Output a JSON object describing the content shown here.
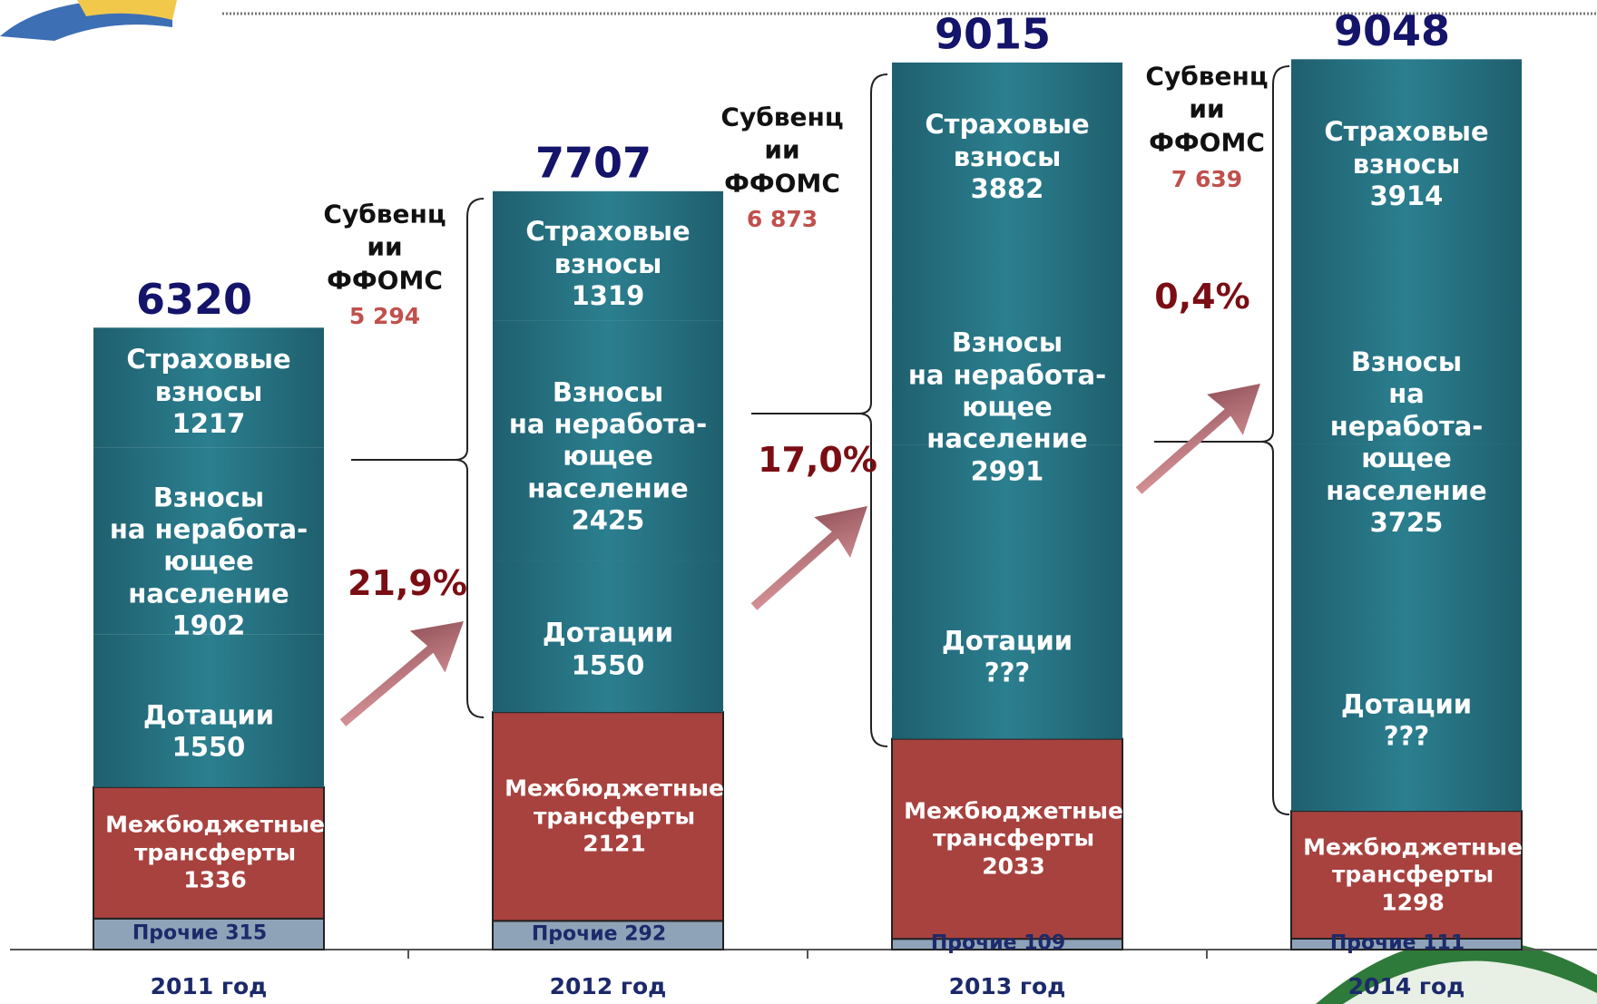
{
  "chart_data": {
    "type": "stacked_bar",
    "categories": [
      "2011 год",
      "2012 год",
      "2013 год",
      "2014 год"
    ],
    "ylim": [
      0,
      9650
    ],
    "series": [
      {
        "name": "Прочие",
        "color": "#8fa3b8",
        "text_color": "#1c2a6b",
        "values": [
          315,
          292,
          109,
          111
        ]
      },
      {
        "name": "Межбюджетные\nтрансферты",
        "color": "#a8423f",
        "text_color": "#ffffff",
        "values": [
          1336,
          2121,
          2033,
          1298
        ]
      },
      {
        "name": "Дотации",
        "color": "#256f7e",
        "text_color": "#ffffff",
        "values": [
          1550,
          1550,
          null,
          null
        ],
        "value_labels": [
          "1550",
          "1550",
          "???",
          "???"
        ]
      },
      {
        "name": "Взносы\nна неработа-\nющее\nнаселение",
        "color": "#256f7e",
        "text_color": "#ffffff",
        "values": [
          1902,
          2425,
          2991,
          3725
        ]
      },
      {
        "name": "Страховые\nвзносы",
        "color": "#256f7e",
        "text_color": "#ffffff",
        "values": [
          1217,
          1319,
          3882,
          3914
        ]
      }
    ],
    "totals": [
      6320,
      7707,
      9015,
      9048
    ],
    "subventions": {
      "name": "Субвенц\nии\nФФОМС",
      "values": [
        5294,
        6873,
        7639
      ],
      "value_labels": [
        "5 294",
        "6 873",
        "7 639"
      ]
    },
    "growth": {
      "values": [
        21.9,
        17.0,
        0.4
      ],
      "value_labels": [
        "21,9%",
        "17,0%",
        "0,4%"
      ]
    }
  }
}
